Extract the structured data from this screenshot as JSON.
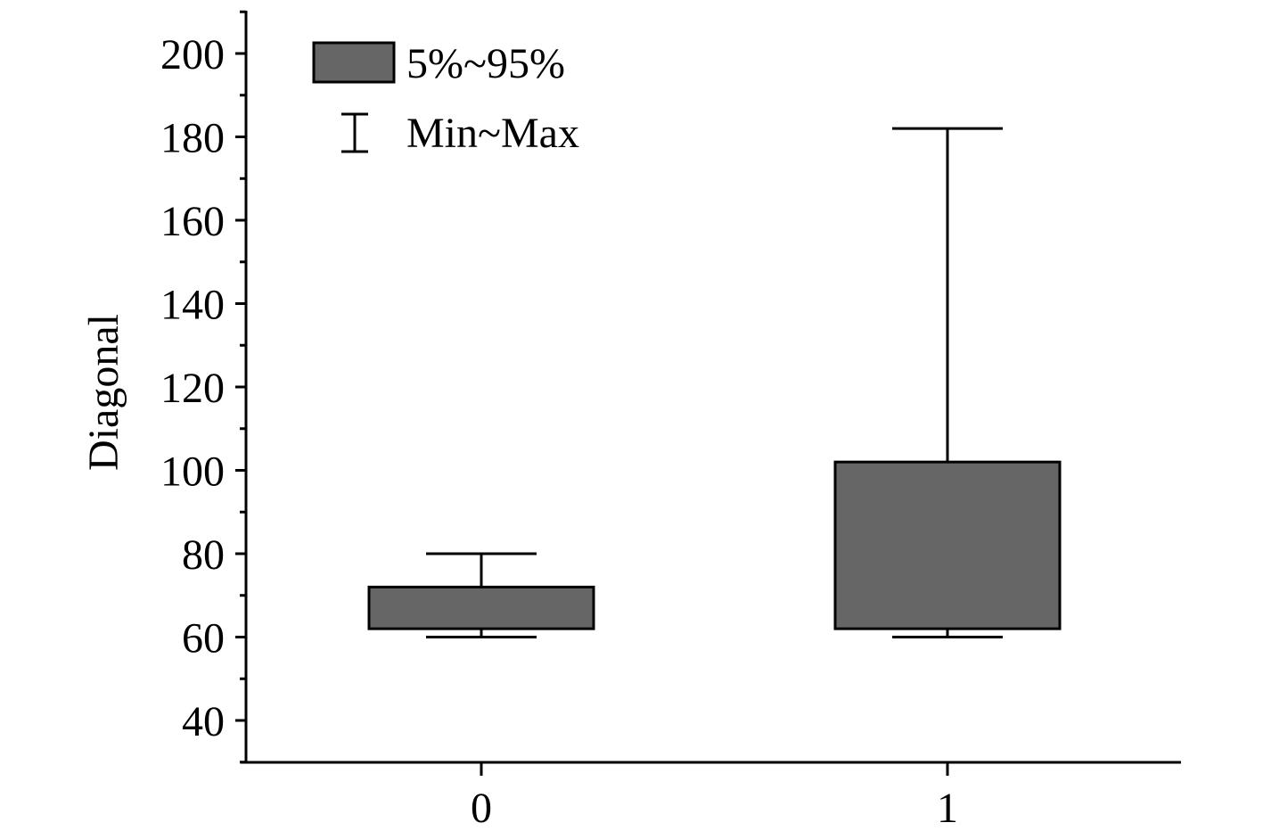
{
  "chart_data": {
    "type": "box",
    "title": "",
    "xlabel": "",
    "ylabel": "Diagonal",
    "ylim": [
      30,
      210
    ],
    "yticks": [
      40,
      60,
      80,
      100,
      120,
      140,
      160,
      180,
      200
    ],
    "ytick_labels": [
      "40",
      "60",
      "80",
      "100",
      "120",
      "140",
      "160",
      "180",
      "200"
    ],
    "categories": [
      "0",
      "1"
    ],
    "boxes": [
      {
        "category": "0",
        "min": 60,
        "p5": 62,
        "p95": 72,
        "max": 80
      },
      {
        "category": "1",
        "min": 60,
        "p5": 62,
        "p95": 102,
        "max": 182
      }
    ],
    "legend": {
      "position": "top-left",
      "box_label": "5%~95%",
      "whisker_label": "Min~Max"
    },
    "colors": {
      "box_fill": "#666666",
      "stroke": "#000000"
    }
  }
}
